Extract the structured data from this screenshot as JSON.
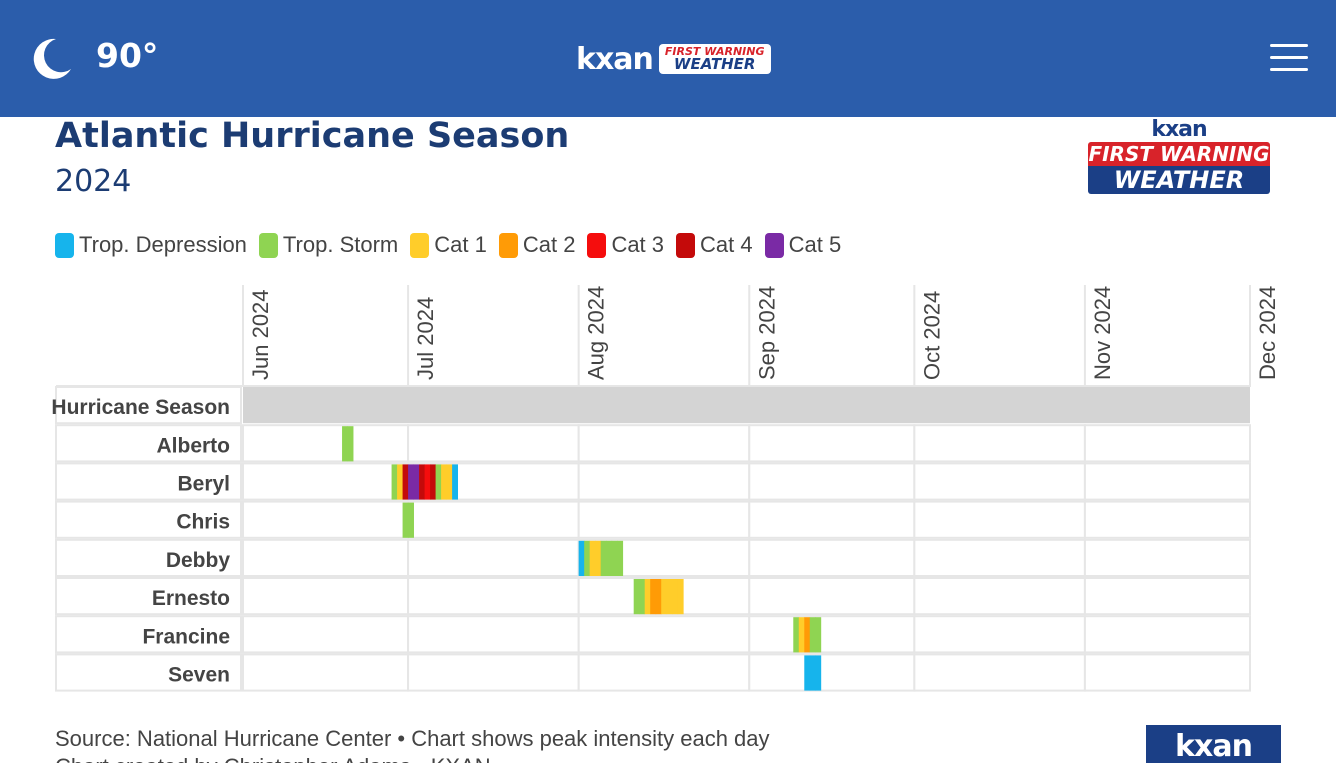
{
  "header": {
    "weather_icon": "moon-icon",
    "temperature": "90°",
    "brand_name": "kxan",
    "brand_line1": "FIRST WARNING",
    "brand_line2": "WEATHER",
    "menu_icon": "hamburger-menu-icon",
    "colors": {
      "bar": "#2b5dab"
    }
  },
  "logo": {
    "name": "kxan",
    "line1": "FIRST WARNING",
    "line2": "WEATHER"
  },
  "footer": {
    "source": "Source: National Hurricane Center • Chart shows peak intensity each day",
    "credit": "Chart created by Christopher Adams • KXAN",
    "logo_text": "kxan"
  },
  "chart_data": {
    "type": "timeline",
    "title": "Atlantic Hurricane Season",
    "subtitle": "2024",
    "legend": [
      {
        "key": "TD",
        "label": "Trop. Depression",
        "color": "#16b4ec"
      },
      {
        "key": "TS",
        "label": "Trop. Storm",
        "color": "#8fd452"
      },
      {
        "key": "C1",
        "label": "Cat 1",
        "color": "#ffcd2a"
      },
      {
        "key": "C2",
        "label": "Cat 2",
        "color": "#ff9b06"
      },
      {
        "key": "C3",
        "label": "Cat 3",
        "color": "#f50d0d"
      },
      {
        "key": "C4",
        "label": "Cat 4",
        "color": "#c40a0a"
      },
      {
        "key": "C5",
        "label": "Cat 5",
        "color": "#7a2aa5"
      }
    ],
    "x_ticks": [
      "Jun 2024",
      "Jul 2024",
      "Aug 2024",
      "Sep 2024",
      "Oct 2024",
      "Nov 2024",
      "Dec 2024"
    ],
    "x_range": [
      "2024-06-01",
      "2024-12-01"
    ],
    "season": {
      "label": "Hurricane Season",
      "start": "2024-06-01",
      "end": "2024-11-30",
      "color": "#d4d4d4"
    },
    "storms": [
      {
        "name": "Alberto",
        "days": [
          {
            "date": "2024-06-19",
            "cat": "TS"
          },
          {
            "date": "2024-06-20",
            "cat": "TS"
          }
        ]
      },
      {
        "name": "Beryl",
        "days": [
          {
            "date": "2024-06-28",
            "cat": "TS"
          },
          {
            "date": "2024-06-29",
            "cat": "C1"
          },
          {
            "date": "2024-06-30",
            "cat": "C4"
          },
          {
            "date": "2024-07-01",
            "cat": "C5"
          },
          {
            "date": "2024-07-02",
            "cat": "C5"
          },
          {
            "date": "2024-07-03",
            "cat": "C4"
          },
          {
            "date": "2024-07-04",
            "cat": "C3"
          },
          {
            "date": "2024-07-05",
            "cat": "C4"
          },
          {
            "date": "2024-07-06",
            "cat": "TS"
          },
          {
            "date": "2024-07-07",
            "cat": "C1"
          },
          {
            "date": "2024-07-08",
            "cat": "C1"
          },
          {
            "date": "2024-07-09",
            "cat": "TD"
          }
        ]
      },
      {
        "name": "Chris",
        "days": [
          {
            "date": "2024-06-30",
            "cat": "TS"
          },
          {
            "date": "2024-07-01",
            "cat": "TS"
          }
        ]
      },
      {
        "name": "Debby",
        "days": [
          {
            "date": "2024-08-01",
            "cat": "TD"
          },
          {
            "date": "2024-08-02",
            "cat": "TS"
          },
          {
            "date": "2024-08-03",
            "cat": "C1"
          },
          {
            "date": "2024-08-04",
            "cat": "C1"
          },
          {
            "date": "2024-08-05",
            "cat": "TS"
          },
          {
            "date": "2024-08-06",
            "cat": "TS"
          },
          {
            "date": "2024-08-07",
            "cat": "TS"
          },
          {
            "date": "2024-08-08",
            "cat": "TS"
          }
        ]
      },
      {
        "name": "Ernesto",
        "days": [
          {
            "date": "2024-08-11",
            "cat": "TS"
          },
          {
            "date": "2024-08-12",
            "cat": "TS"
          },
          {
            "date": "2024-08-13",
            "cat": "C1"
          },
          {
            "date": "2024-08-14",
            "cat": "C2"
          },
          {
            "date": "2024-08-15",
            "cat": "C2"
          },
          {
            "date": "2024-08-16",
            "cat": "C1"
          },
          {
            "date": "2024-08-17",
            "cat": "C1"
          },
          {
            "date": "2024-08-18",
            "cat": "C1"
          },
          {
            "date": "2024-08-19",
            "cat": "C1"
          }
        ]
      },
      {
        "name": "Francine",
        "days": [
          {
            "date": "2024-09-09",
            "cat": "TS"
          },
          {
            "date": "2024-09-10",
            "cat": "C1"
          },
          {
            "date": "2024-09-11",
            "cat": "C2"
          },
          {
            "date": "2024-09-12",
            "cat": "TS"
          },
          {
            "date": "2024-09-13",
            "cat": "TS"
          }
        ]
      },
      {
        "name": "Seven",
        "days": [
          {
            "date": "2024-09-11",
            "cat": "TD"
          },
          {
            "date": "2024-09-12",
            "cat": "TD"
          },
          {
            "date": "2024-09-13",
            "cat": "TD"
          }
        ]
      }
    ],
    "grid": true
  }
}
